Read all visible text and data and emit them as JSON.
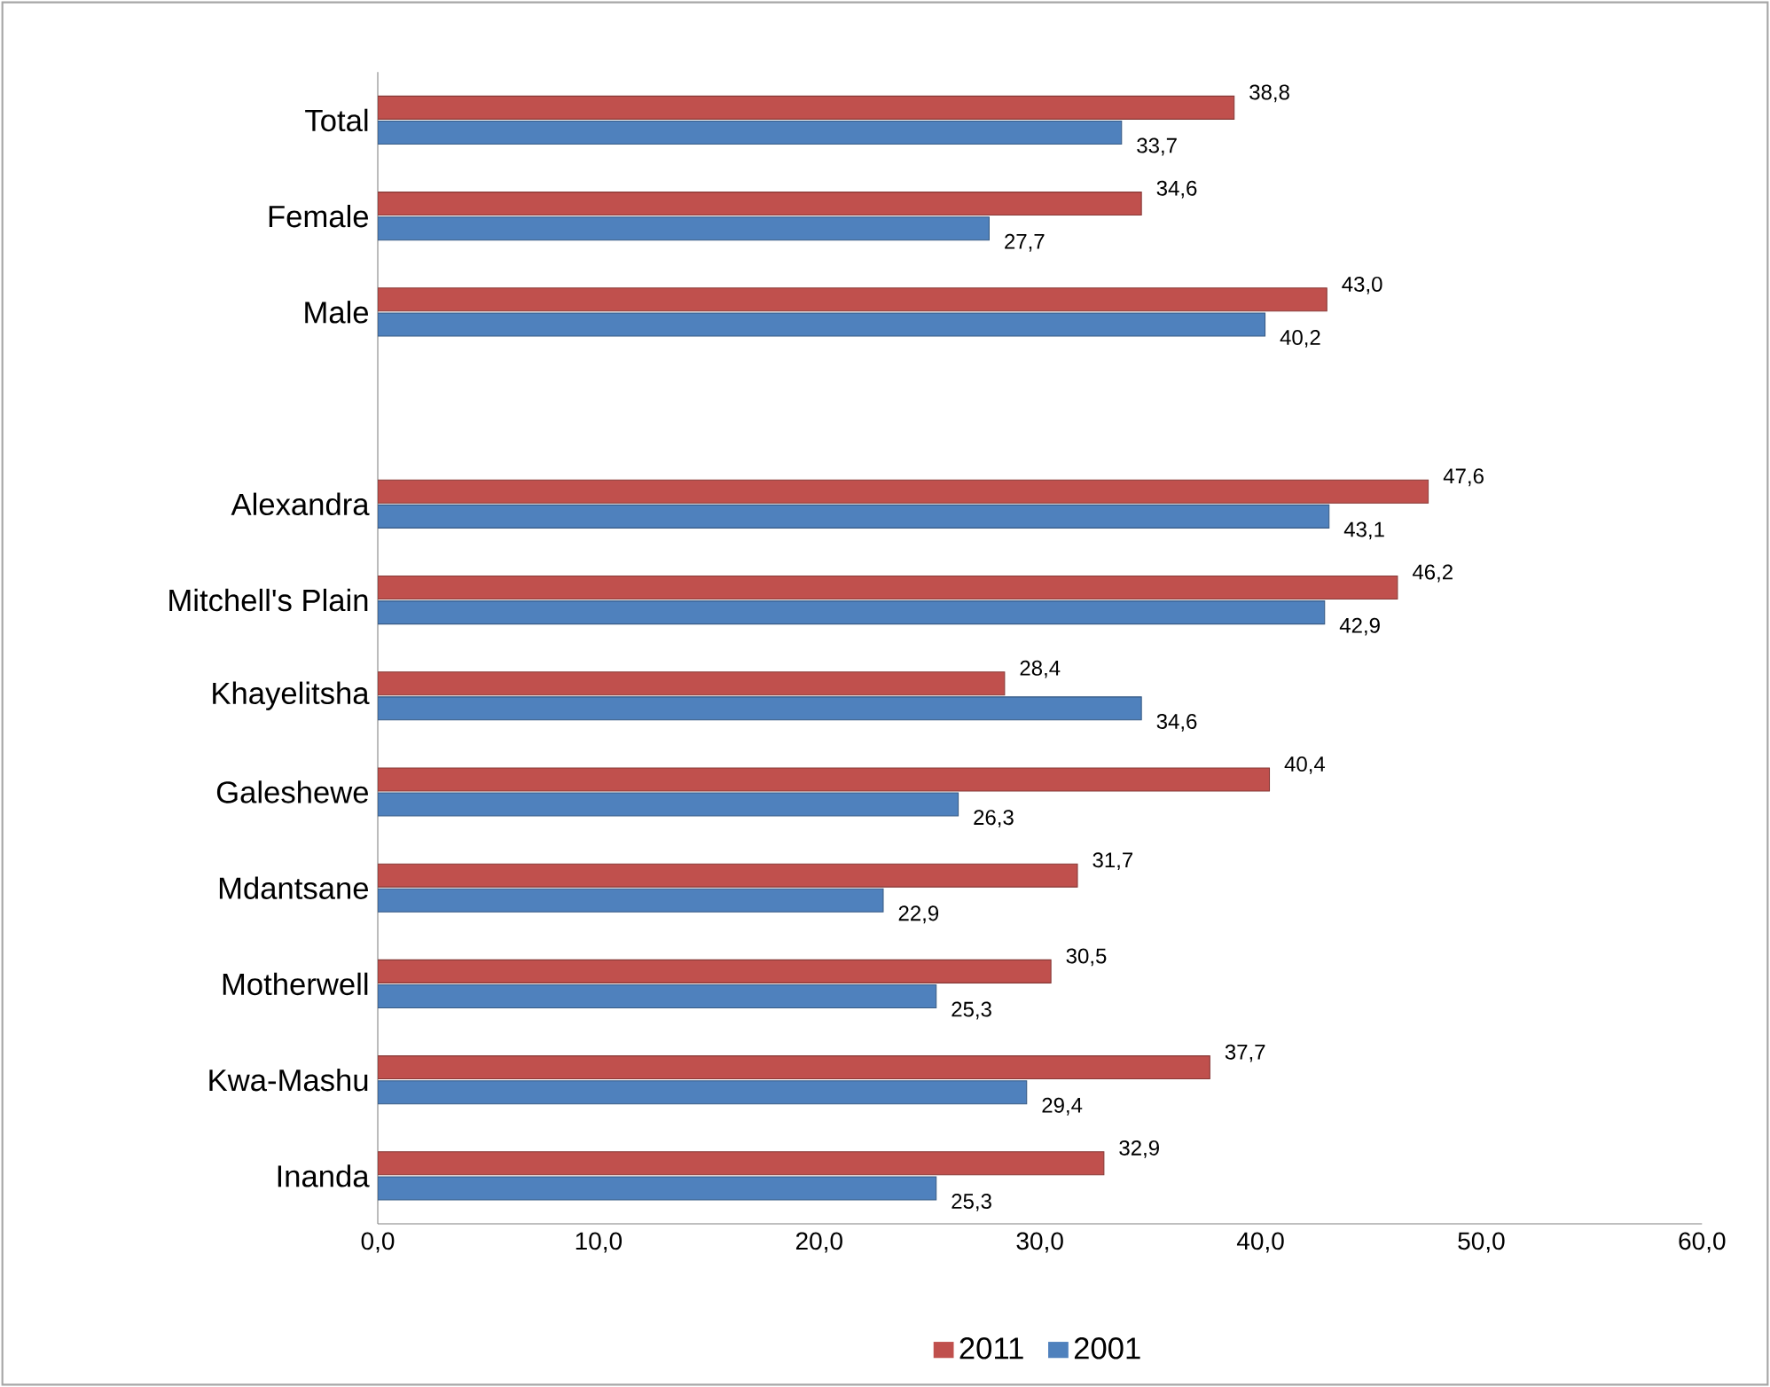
{
  "chart_data": {
    "type": "bar",
    "orientation": "horizontal",
    "categories": [
      "Total",
      "Female",
      "Male",
      null,
      "Alexandra",
      "Mitchell's Plain",
      "Khayelitsha",
      "Galeshewe",
      "Mdantsane",
      "Motherwell",
      "Kwa-Mashu",
      "Inanda"
    ],
    "series": [
      {
        "name": "2011",
        "color": "#c0504d",
        "values": [
          38.8,
          34.6,
          43.0,
          null,
          47.6,
          46.2,
          28.4,
          40.4,
          31.7,
          30.5,
          37.7,
          32.9
        ],
        "value_labels": [
          "38,8",
          "34,6",
          "43,0",
          null,
          "47,6",
          "46,2",
          "28,4",
          "40,4",
          "31,7",
          "30,5",
          "37,7",
          "32,9"
        ]
      },
      {
        "name": "2001",
        "color": "#4f81bd",
        "values": [
          33.7,
          27.7,
          40.2,
          null,
          43.1,
          42.9,
          34.6,
          26.3,
          22.9,
          25.3,
          29.4,
          25.3
        ],
        "value_labels": [
          "33,7",
          "27,7",
          "40,2",
          null,
          "43,1",
          "42,9",
          "34,6",
          "26,3",
          "22,9",
          "25,3",
          "29,4",
          "25,3"
        ]
      }
    ],
    "xlim": [
      0,
      60
    ],
    "xticks": [
      {
        "value": 0,
        "label": "0,0"
      },
      {
        "value": 10,
        "label": "10,0"
      },
      {
        "value": 20,
        "label": "20,0"
      },
      {
        "value": 30,
        "label": "30,0"
      },
      {
        "value": 40,
        "label": "40,0"
      },
      {
        "value": 50,
        "label": "50,0"
      },
      {
        "value": 60,
        "label": "60,0"
      }
    ],
    "grid": false,
    "legend": "bottom"
  }
}
